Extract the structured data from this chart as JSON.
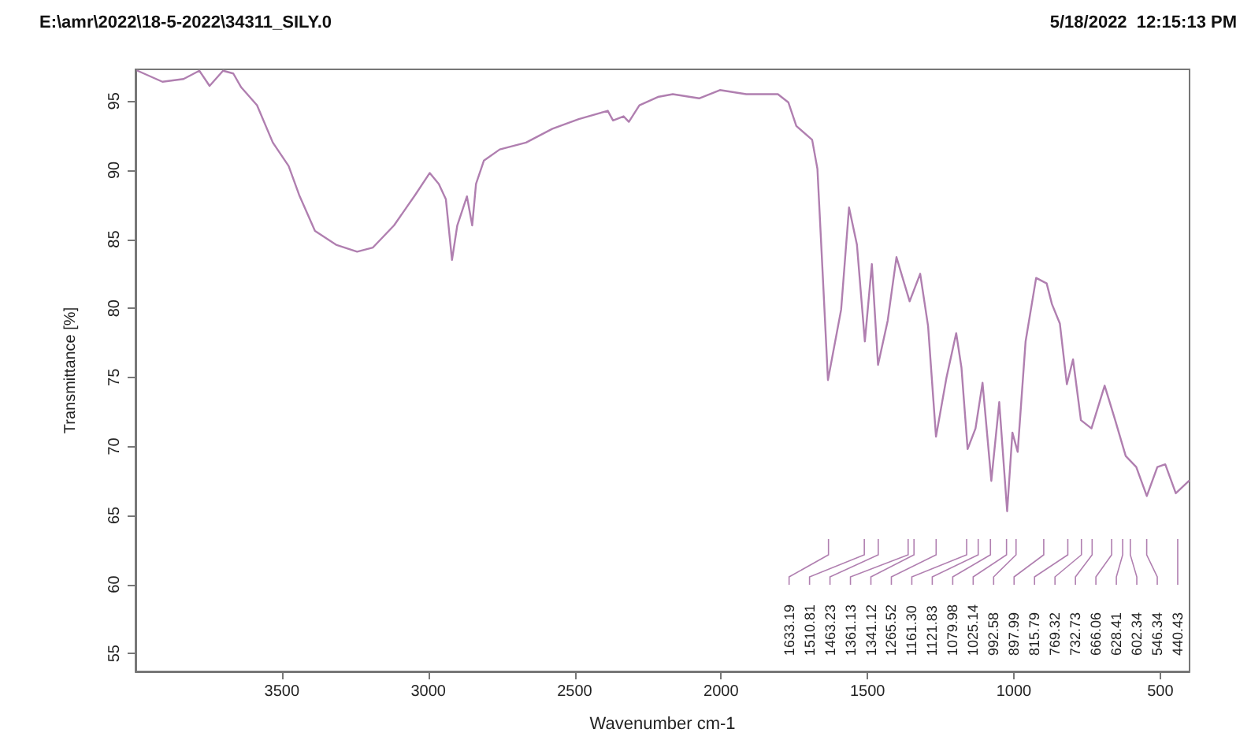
{
  "chart_data": {
    "type": "line",
    "title": "E:\\amr\\2022\\18-5-2022\\34311_SILY.0",
    "subtitle": "5/18/2022  12:15:13 PM",
    "xlabel": "Wavenumber cm-1",
    "ylabel": "Transmittance [%]",
    "xlim": [
      4000,
      400
    ],
    "xticks": [
      3500,
      3000,
      2500,
      2000,
      1500,
      1000,
      500
    ],
    "ylim": [
      53.7,
      97.3
    ],
    "yticks": [
      55,
      60,
      65,
      70,
      75,
      80,
      85,
      90,
      95
    ],
    "grid": false,
    "marker": "none",
    "line_style": "solid",
    "series": [
      {
        "color": "#b07fb0",
        "x": [
          3993,
          3908,
          3836,
          3782,
          3747,
          3701,
          3666,
          3639,
          3585,
          3531,
          3477,
          3441,
          3387,
          3315,
          3243,
          3189,
          3117,
          3045,
          2995,
          2964,
          2940,
          2919,
          2901,
          2868,
          2850,
          2837,
          2810,
          2756,
          2666,
          2576,
          2486,
          2387,
          2369,
          2333,
          2315,
          2279,
          2216,
          2165,
          2075,
          2004,
          1914,
          1806,
          1770,
          1743,
          1689,
          1671,
          1653,
          1635,
          1590,
          1563,
          1536,
          1509,
          1485,
          1464,
          1431,
          1401,
          1356,
          1320,
          1293,
          1266,
          1230,
          1197,
          1179,
          1158,
          1131,
          1107,
          1077,
          1050,
          1023,
          1005,
          987,
          960,
          924,
          888,
          870,
          843,
          819,
          798,
          771,
          735,
          690,
          654,
          618,
          582,
          546,
          510,
          483,
          447,
          402
        ],
        "values": [
          97.2,
          96.4,
          96.6,
          97.2,
          96.1,
          97.2,
          97.0,
          96.0,
          94.7,
          92.0,
          90.3,
          88.2,
          85.6,
          84.6,
          84.1,
          84.4,
          86.0,
          88.2,
          89.8,
          89.0,
          87.9,
          83.5,
          86.0,
          88.1,
          86.0,
          89.0,
          90.7,
          91.5,
          92.0,
          93.0,
          93.7,
          94.3,
          93.6,
          93.9,
          93.5,
          94.7,
          95.3,
          95.5,
          95.2,
          95.8,
          95.5,
          95.5,
          94.9,
          93.2,
          92.2,
          90.1,
          82.5,
          74.8,
          79.9,
          87.3,
          84.6,
          77.6,
          83.2,
          75.9,
          79.1,
          83.7,
          80.5,
          82.5,
          78.7,
          70.7,
          75.0,
          78.2,
          75.7,
          69.8,
          71.3,
          74.6,
          67.5,
          73.2,
          65.3,
          71.0,
          69.6,
          77.6,
          82.2,
          81.8,
          80.3,
          78.9,
          74.5,
          76.3,
          71.9,
          71.3,
          74.4,
          71.9,
          69.3,
          68.5,
          66.4,
          68.5,
          68.7,
          66.6,
          67.5
        ]
      }
    ],
    "annotations": [
      "1633.19",
      "1510.81",
      "1463.23",
      "1361.13",
      "1341.12",
      "1265.52",
      "1161.30",
      "1121.83",
      "1079.98",
      "1025.14",
      "992.58",
      "897.99",
      "815.79",
      "769.32",
      "732.73",
      "666.06",
      "628.41",
      "602.34",
      "546.34",
      "440.43"
    ]
  }
}
